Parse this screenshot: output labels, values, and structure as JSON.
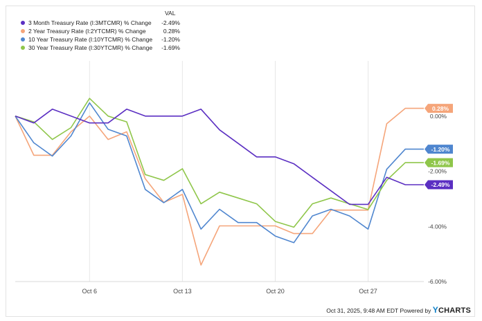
{
  "chart_data": {
    "type": "line",
    "x_labels_visible": [
      "Oct 6",
      "Oct 13",
      "Oct 20",
      "Oct 27"
    ],
    "x": [
      "Sep 30",
      "Oct 1",
      "Oct 2",
      "Oct 3",
      "Oct 6",
      "Oct 7",
      "Oct 8",
      "Oct 9",
      "Oct 10",
      "Oct 13",
      "Oct 14",
      "Oct 15",
      "Oct 16",
      "Oct 17",
      "Oct 20",
      "Oct 21",
      "Oct 22",
      "Oct 23",
      "Oct 24",
      "Oct 27",
      "Oct 28",
      "Oct 29",
      "Oct 30"
    ],
    "ylim": [
      -6.0,
      2.0
    ],
    "yticks": [
      0,
      -2,
      -4,
      -6
    ],
    "ytick_labels": [
      "0.00%",
      "-2.00%",
      "-4.00%",
      "-6.00%"
    ],
    "grid": "vertical",
    "legend_header": "VAL",
    "series": [
      {
        "name": "3 Month Treasury Rate (I:3MTCMR) % Change",
        "value_label": "-2.49%",
        "color": "#5b2fc2",
        "values": [
          0,
          -0.25,
          0.25,
          0.0,
          -0.25,
          -0.25,
          0.25,
          0.0,
          0.0,
          0.0,
          0.25,
          -0.5,
          -0.99,
          -1.48,
          -1.48,
          -1.73,
          -2.22,
          -2.71,
          -3.2,
          -3.2,
          -2.22,
          -2.49,
          -2.49
        ]
      },
      {
        "name": "2 Year Treasury Rate (I:2YTCMR) % Change",
        "value_label": "0.28%",
        "color": "#f5a57a",
        "values": [
          0,
          -1.42,
          -1.42,
          -0.57,
          0.0,
          -0.85,
          -0.57,
          -2.27,
          -3.13,
          -2.84,
          -5.4,
          -3.98,
          -3.98,
          -3.98,
          -3.98,
          -4.26,
          -4.26,
          -3.41,
          -3.41,
          -3.41,
          -0.28,
          0.28,
          0.28
        ]
      },
      {
        "name": "10 Year Treasury Rate (I:10YTCMR) % Change",
        "value_label": "-1.20%",
        "color": "#4f86cf",
        "values": [
          0,
          -0.97,
          -1.45,
          -0.72,
          0.48,
          -0.48,
          -0.72,
          -2.66,
          -3.14,
          -2.66,
          -4.1,
          -3.38,
          -3.86,
          -3.86,
          -4.35,
          -4.59,
          -3.62,
          -3.38,
          -3.62,
          -4.1,
          -1.93,
          -1.2,
          -1.2
        ]
      },
      {
        "name": "30 Year Treasury Rate (I:30YTCMR) % Change",
        "value_label": "-1.69%",
        "color": "#8fc64a",
        "values": [
          0,
          -0.21,
          -0.85,
          -0.42,
          0.64,
          0.0,
          -0.21,
          -2.12,
          -2.33,
          -1.91,
          -3.18,
          -2.76,
          -2.97,
          -3.18,
          -3.82,
          -4.03,
          -3.18,
          -2.97,
          -3.18,
          -3.39,
          -2.33,
          -1.69,
          -1.69
        ]
      }
    ]
  },
  "footer": {
    "timestamp": "Oct 31, 2025, 9:48 AM EDT",
    "powered_by": "Powered by",
    "brand_y": "Y",
    "brand_rest": "CHARTS"
  }
}
